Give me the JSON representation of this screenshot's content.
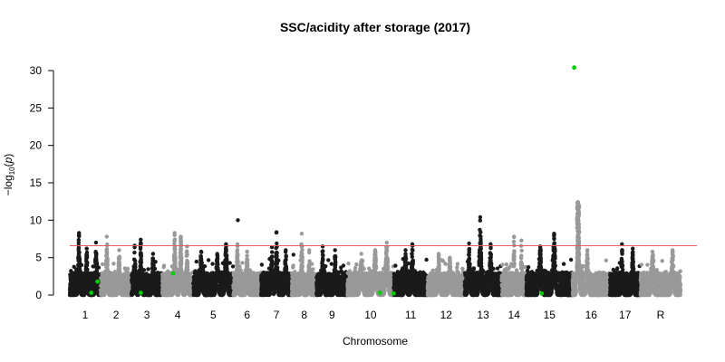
{
  "chart_data": {
    "type": "scatter",
    "title": "SSC/acidity after storage (2017)",
    "xlabel": "Chromosome",
    "ylabel_main": "−log",
    "ylabel_sub": "10",
    "ylabel_open": "(",
    "ylabel_var": "p",
    "ylabel_close": ")",
    "ylim": [
      0,
      30
    ],
    "yticks": [
      "0",
      "5",
      "10",
      "15",
      "20",
      "25",
      "30"
    ],
    "threshold": 6.6,
    "colors": {
      "odd": "#1a1a1a",
      "even": "#999999",
      "highlight": "#00cc00",
      "threshold": "#e06060"
    },
    "chromosomes": [
      {
        "label": "1",
        "start": 0.0,
        "end": 1.0,
        "peaks": [
          [
            0.3,
            8.3
          ],
          [
            0.55,
            6.2
          ],
          [
            0.85,
            7.0
          ]
        ]
      },
      {
        "label": "2",
        "start": 1.0,
        "end": 2.0,
        "peaks": [
          [
            0.2,
            7.8
          ],
          [
            0.6,
            6.0
          ]
        ]
      },
      {
        "label": "3",
        "start": 2.0,
        "end": 3.0,
        "peaks": [
          [
            0.1,
            6.6
          ],
          [
            0.3,
            7.4
          ],
          [
            0.7,
            5.5
          ]
        ]
      },
      {
        "label": "4",
        "start": 3.0,
        "end": 4.0,
        "peaks": [
          [
            0.4,
            8.3
          ],
          [
            0.6,
            7.8
          ],
          [
            0.8,
            6.5
          ]
        ]
      },
      {
        "label": "5",
        "start": 4.0,
        "end": 5.3,
        "peaks": [
          [
            0.2,
            5.8
          ],
          [
            0.6,
            5.5
          ],
          [
            0.82,
            6.8
          ]
        ]
      },
      {
        "label": "6",
        "start": 5.3,
        "end": 6.2,
        "peaks": [
          [
            0.15,
            6.8
          ],
          [
            0.5,
            5.8
          ]
        ]
      },
      {
        "label": "7",
        "start": 6.2,
        "end": 7.2,
        "peaks": [
          [
            0.35,
            6.4
          ],
          [
            0.5,
            8.4
          ],
          [
            0.8,
            6.0
          ]
        ]
      },
      {
        "label": "8",
        "start": 7.2,
        "end": 8.0,
        "peaks": [
          [
            0.4,
            8.2
          ],
          [
            0.7,
            6.0
          ]
        ]
      },
      {
        "label": "9",
        "start": 8.0,
        "end": 9.0,
        "peaks": [
          [
            0.2,
            6.5
          ],
          [
            0.6,
            6.0
          ]
        ]
      },
      {
        "label": "10",
        "start": 9.0,
        "end": 10.5,
        "peaks": [
          [
            0.3,
            5.5
          ],
          [
            0.6,
            6.0
          ],
          [
            0.85,
            7.0
          ]
        ]
      },
      {
        "label": "11",
        "start": 10.5,
        "end": 11.6,
        "peaks": [
          [
            0.35,
            6.0
          ],
          [
            0.55,
            6.8
          ]
        ]
      },
      {
        "label": "12",
        "start": 11.6,
        "end": 12.8,
        "peaks": [
          [
            0.3,
            5.5
          ],
          [
            0.6,
            5.0
          ]
        ]
      },
      {
        "label": "13",
        "start": 12.8,
        "end": 14.0,
        "peaks": [
          [
            0.12,
            6.9
          ],
          [
            0.42,
            10.4
          ],
          [
            0.7,
            6.8
          ]
        ]
      },
      {
        "label": "14",
        "start": 14.0,
        "end": 14.8,
        "peaks": [
          [
            0.5,
            7.8
          ],
          [
            0.8,
            7.3
          ]
        ]
      },
      {
        "label": "15",
        "start": 14.8,
        "end": 16.3,
        "peaks": [
          [
            0.3,
            6.5
          ],
          [
            0.6,
            8.2
          ]
        ]
      },
      {
        "label": "16",
        "start": 16.3,
        "end": 17.5,
        "peaks": [
          [
            0.15,
            12.4
          ],
          [
            0.4,
            6.0
          ]
        ]
      },
      {
        "label": "17",
        "start": 17.5,
        "end": 18.5,
        "peaks": [
          [
            0.4,
            6.8
          ],
          [
            0.75,
            6.2
          ]
        ]
      },
      {
        "label": "R",
        "start": 18.5,
        "end": 19.8,
        "peaks": [
          [
            0.3,
            5.8
          ],
          [
            0.8,
            6.0
          ]
        ]
      }
    ],
    "extra_points": [
      {
        "x": 5.45,
        "y": 10.0,
        "color": "odd"
      },
      {
        "x": 7.25,
        "y": 5.4,
        "color": "odd"
      }
    ],
    "highlighted_points": [
      {
        "x": 16.35,
        "y": 30.4
      },
      {
        "x": 0.7,
        "y": 0.3
      },
      {
        "x": 0.9,
        "y": 1.8
      },
      {
        "x": 2.3,
        "y": 0.3
      },
      {
        "x": 3.35,
        "y": 2.9
      },
      {
        "x": 10.05,
        "y": 0.3
      },
      {
        "x": 10.5,
        "y": 0.2
      },
      {
        "x": 15.3,
        "y": 0.2
      }
    ]
  }
}
